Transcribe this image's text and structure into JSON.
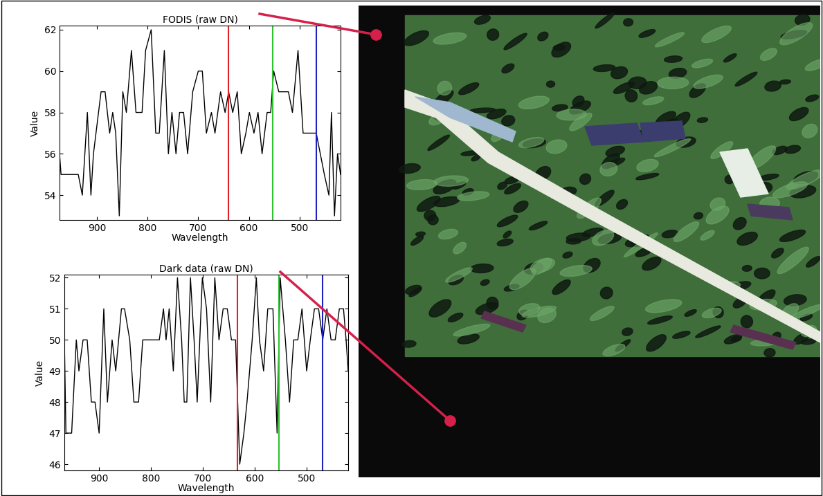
{
  "chart_data": [
    {
      "type": "line",
      "title": "FODIS (raw DN)",
      "xlabel": "Wavelength",
      "ylabel": "Value",
      "color": "#000000",
      "x": [
        974,
        971,
        955,
        937,
        929,
        919,
        912,
        907,
        892,
        884,
        875,
        869,
        863,
        856,
        849,
        842,
        832,
        823,
        811,
        804,
        793,
        784,
        777,
        767,
        759,
        752,
        744,
        737,
        729,
        721,
        711,
        700,
        692,
        684,
        674,
        667,
        656,
        647,
        640,
        632,
        623,
        615,
        606,
        599,
        590,
        582,
        574,
        564,
        557,
        551,
        541,
        530,
        522,
        514,
        503,
        493,
        484,
        475,
        467,
        459,
        451,
        442,
        437,
        431,
        425,
        419
      ],
      "values": [
        56,
        55,
        55,
        55,
        54,
        58,
        54,
        56,
        59,
        59,
        57,
        58,
        57,
        53,
        59,
        58,
        61,
        58,
        58,
        61,
        62,
        57,
        57,
        61,
        56,
        58,
        56,
        58,
        58,
        56,
        59,
        60,
        60,
        57,
        58,
        57,
        59,
        58,
        59,
        58,
        59,
        56,
        57,
        58,
        57,
        58,
        56,
        58,
        58,
        60,
        59,
        59,
        59,
        58,
        61,
        57,
        57,
        57,
        57,
        56,
        55,
        54,
        58,
        53,
        56,
        55
      ],
      "xlim": [
        974,
        419
      ],
      "ylim": [
        52.8,
        62.2
      ],
      "xticks": [
        900,
        800,
        700,
        600,
        500
      ],
      "yticks": [
        54,
        56,
        58,
        60,
        62
      ],
      "vlines": [
        {
          "x": 640,
          "color": "#e0202a"
        },
        {
          "x": 553,
          "color": "#30c030"
        },
        {
          "x": 467,
          "color": "#2020c0"
        }
      ]
    },
    {
      "type": "line",
      "title": "Dark data (raw DN)",
      "xlabel": "Wavelength",
      "ylabel": "Value",
      "color": "#000000",
      "x": [
        967,
        964,
        953,
        944,
        939,
        931,
        923,
        915,
        908,
        900,
        891,
        884,
        875,
        868,
        857,
        851,
        841,
        833,
        824,
        816,
        808,
        800,
        792,
        784,
        776,
        771,
        765,
        757,
        749,
        741,
        736,
        731,
        724,
        717,
        711,
        701,
        693,
        685,
        677,
        669,
        661,
        653,
        645,
        637,
        629,
        621,
        615,
        605,
        597,
        591,
        583,
        575,
        565,
        557,
        551,
        541,
        533,
        525,
        517,
        509,
        500,
        493,
        485,
        477,
        469,
        461,
        453,
        445,
        437,
        429,
        424,
        420
      ],
      "values": [
        50,
        47,
        47,
        50,
        49,
        50,
        50,
        48,
        48,
        47,
        51,
        48,
        50,
        49,
        51,
        51,
        50,
        48,
        48,
        50,
        50,
        50,
        50,
        50,
        51,
        50,
        51,
        49,
        52,
        50,
        48,
        48,
        52,
        50,
        48,
        52,
        51,
        48,
        52,
        50,
        51,
        51,
        50,
        50,
        46,
        47,
        48,
        50,
        52,
        50,
        49,
        51,
        51,
        47,
        52,
        50,
        48,
        50,
        50,
        51,
        49,
        50,
        51,
        51,
        50,
        51,
        50,
        50,
        51,
        51,
        50,
        49
      ],
      "xlim": [
        967,
        420
      ],
      "ylim": [
        45.8,
        52.1
      ],
      "xticks": [
        900,
        800,
        700,
        600,
        500
      ],
      "yticks": [
        46,
        47,
        48,
        49,
        50,
        51,
        52
      ],
      "vlines": [
        {
          "x": 633,
          "color": "#e0202a"
        },
        {
          "x": 553,
          "color": "#30c030"
        },
        {
          "x": 469,
          "color": "#2020c0"
        }
      ]
    }
  ]
}
